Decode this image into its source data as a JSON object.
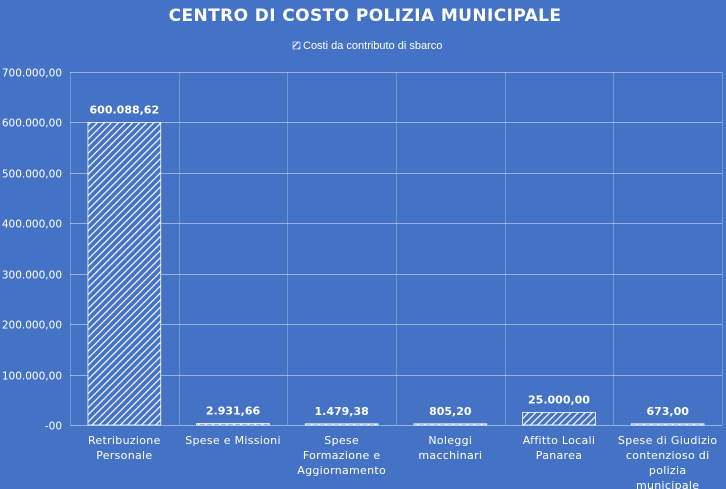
{
  "chart_data": {
    "type": "bar",
    "title": "CENTRO DI COSTO POLIZIA MUNICIPALE",
    "legend": {
      "position": "top",
      "entries": [
        "Costi da contributo di sbarco"
      ]
    },
    "categories": [
      [
        "Retribuzione",
        "Personale"
      ],
      [
        "Spese e Missioni"
      ],
      [
        "Spese",
        "Formazione e",
        "Aggiornamento"
      ],
      [
        "Noleggi",
        "macchinari"
      ],
      [
        "Affitto Locali",
        "Panarea"
      ],
      [
        "Spese di Giudizio",
        "contenzioso di",
        "polizia",
        "municipale"
      ]
    ],
    "series": [
      {
        "name": "Costi da contributo di sbarco",
        "values": [
          600088.62,
          2931.66,
          1479.38,
          805.2,
          25000.0,
          673.0
        ],
        "labels": [
          "600.088,62",
          "2.931,66",
          "1.479,38",
          "805,20",
          "25.000,00",
          "673,00"
        ]
      }
    ],
    "ylim": [
      0,
      700000
    ],
    "yticks": [
      0,
      100000,
      200000,
      300000,
      400000,
      500000,
      600000,
      700000
    ],
    "ytick_labels": [
      "-00",
      "100.000,00",
      "200.000,00",
      "300.000,00",
      "400.000,00",
      "500.000,00",
      "600.000,00",
      "700.000,00"
    ],
    "grid": true,
    "xlabel": "",
    "ylabel": "",
    "colors": {
      "background": "#4472C4",
      "bar_stroke": "#FFFFFF",
      "hatch": "#FFFFFF"
    }
  }
}
